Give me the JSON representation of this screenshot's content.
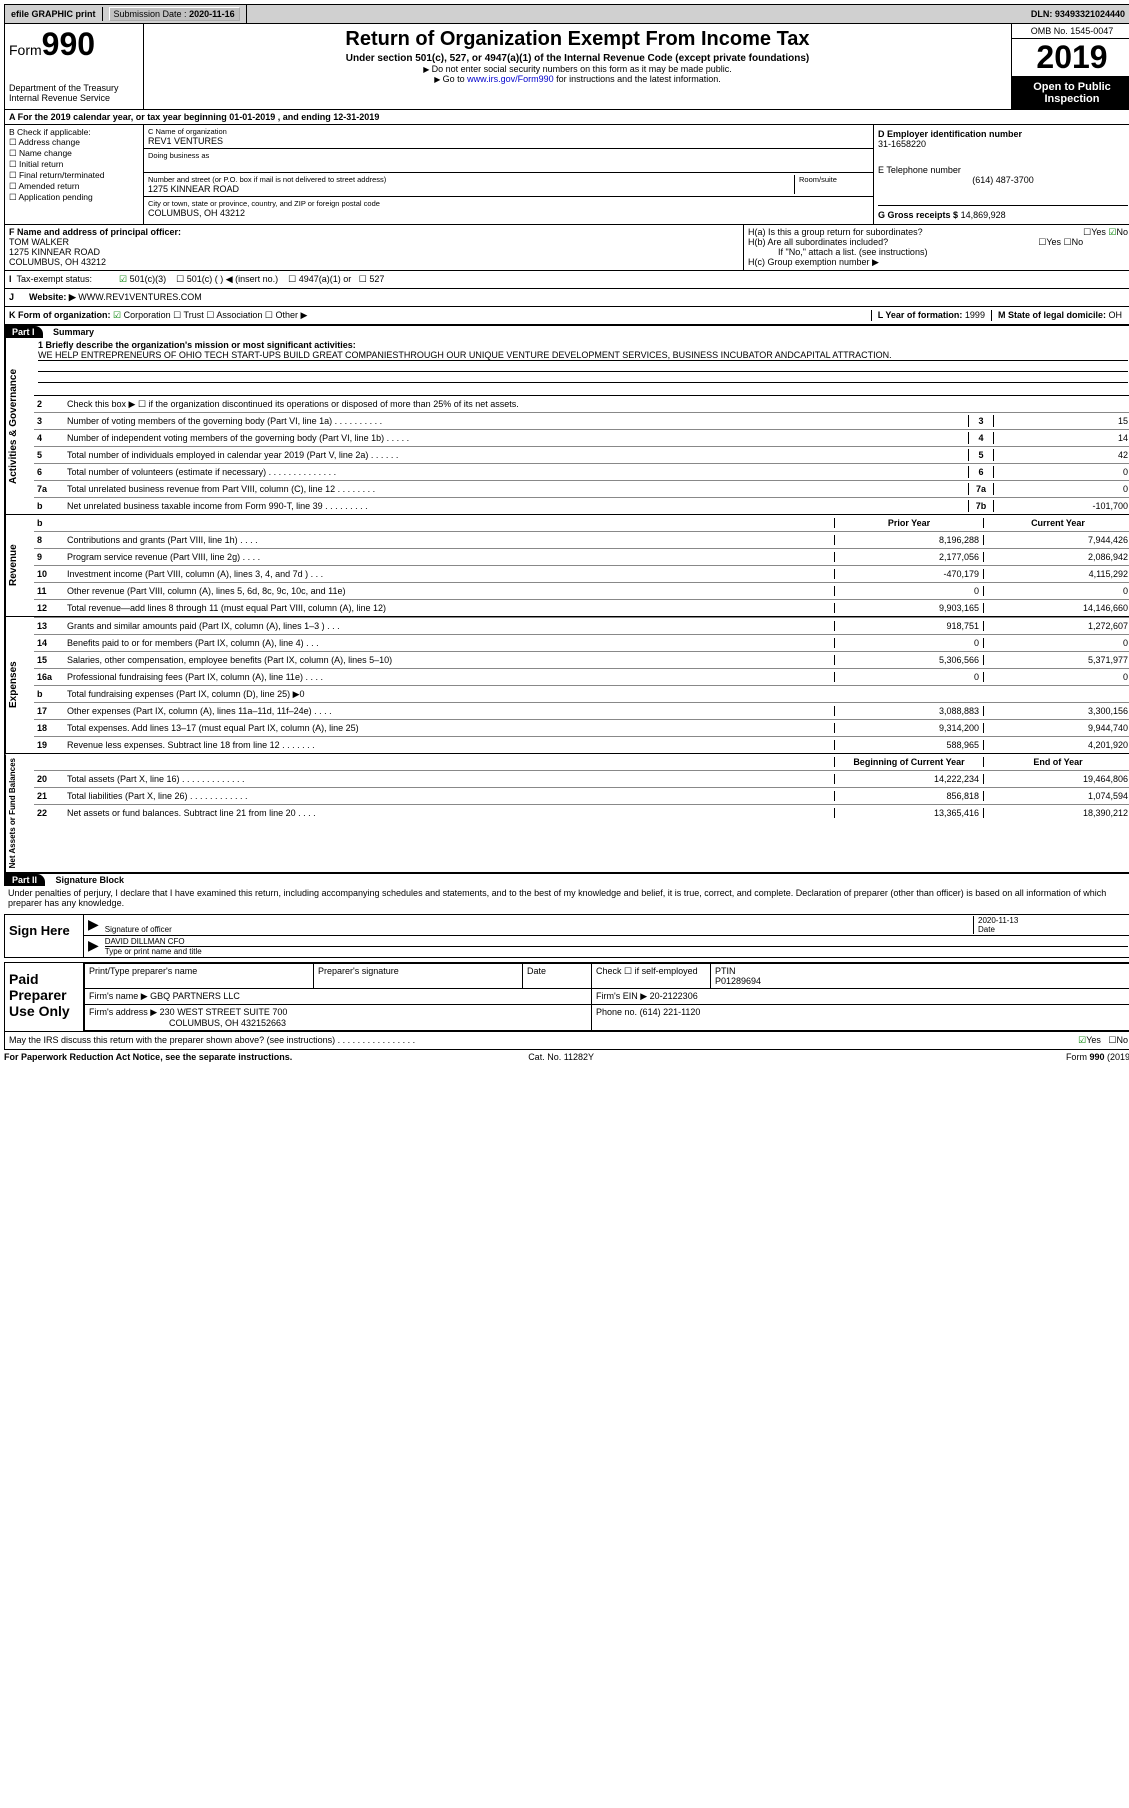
{
  "topbar": {
    "efile": "efile GRAPHIC print",
    "submission_label": "Submission Date :",
    "submission_date": "2020-11-16",
    "dln_label": "DLN:",
    "dln": "93493321024440"
  },
  "header": {
    "form_prefix": "Form",
    "form_number": "990",
    "dept": "Department of the Treasury",
    "irs": "Internal Revenue Service",
    "title": "Return of Organization Exempt From Income Tax",
    "sub1": "Under section 501(c), 527, or 4947(a)(1) of the Internal Revenue Code (except private foundations)",
    "sub2": "Do not enter social security numbers on this form as it may be made public.",
    "sub3_pre": "Go to ",
    "sub3_link": "www.irs.gov/Form990",
    "sub3_post": " for instructions and the latest information.",
    "omb": "OMB No. 1545-0047",
    "year": "2019",
    "open": "Open to Public Inspection"
  },
  "line_a": "A For the 2019 calendar year, or tax year beginning 01-01-2019    , and ending 12-31-2019",
  "section_b": {
    "title": "B Check if applicable:",
    "items": [
      "Address change",
      "Name change",
      "Initial return",
      "Final return/terminated",
      "Amended return",
      "Application pending"
    ]
  },
  "section_c": {
    "name_label": "C Name of organization",
    "name": "REV1 VENTURES",
    "dba_label": "Doing business as",
    "addr_label": "Number and street (or P.O. box if mail is not delivered to street address)",
    "room_label": "Room/suite",
    "addr": "1275 KINNEAR ROAD",
    "city_label": "City or town, state or province, country, and ZIP or foreign postal code",
    "city": "COLUMBUS, OH  43212"
  },
  "section_d": {
    "ein_label": "D Employer identification number",
    "ein": "31-1658220",
    "tel_label": "E Telephone number",
    "tel": "(614) 487-3700",
    "gross_label": "G Gross receipts $",
    "gross": "14,869,928"
  },
  "section_f": {
    "label": "F  Name and address of principal officer:",
    "name": "TOM WALKER",
    "addr1": "1275 KINNEAR ROAD",
    "addr2": "COLUMBUS, OH  43212"
  },
  "section_h": {
    "ha": "H(a)  Is this a group return for subordinates?",
    "hb": "H(b)  Are all subordinates included?",
    "hb_note": "If \"No,\" attach a list. (see instructions)",
    "hc": "H(c)  Group exemption number ▶",
    "yes": "Yes",
    "no": "No"
  },
  "tax_status": {
    "label": "Tax-exempt status:",
    "opts": [
      "501(c)(3)",
      "501(c) (  ) ◀ (insert no.)",
      "4947(a)(1) or",
      "527"
    ]
  },
  "website": {
    "label": "J",
    "text": "Website: ▶",
    "url": "WWW.REV1VENTURES.COM"
  },
  "line_k": {
    "label": "K Form of organization:",
    "opts": [
      "Corporation",
      "Trust",
      "Association",
      "Other ▶"
    ],
    "l_label": "L Year of formation:",
    "l_val": "1999",
    "m_label": "M State of legal domicile:",
    "m_val": "OH"
  },
  "part1": {
    "label": "Part I",
    "title": "Summary",
    "q1_label": "1  Briefly describe the organization's mission or most significant activities:",
    "mission": "WE HELP ENTREPRENEURS OF OHIO TECH START-UPS BUILD GREAT COMPANIESTHROUGH OUR UNIQUE VENTURE DEVELOPMENT SERVICES, BUSINESS INCUBATOR ANDCAPITAL ATTRACTION.",
    "q2": "Check this box ▶ ☐  if the organization discontinued its operations or disposed of more than 25% of its net assets.",
    "lines_gov": [
      {
        "n": "3",
        "d": "Number of voting members of the governing body (Part VI, line 1a)  .  .  .  .  .  .  .  .  .  .",
        "b": "3",
        "v": "15"
      },
      {
        "n": "4",
        "d": "Number of independent voting members of the governing body (Part VI, line 1b)  .  .  .  .  .",
        "b": "4",
        "v": "14"
      },
      {
        "n": "5",
        "d": "Total number of individuals employed in calendar year 2019 (Part V, line 2a)  .  .  .  .  .  .",
        "b": "5",
        "v": "42"
      },
      {
        "n": "6",
        "d": "Total number of volunteers (estimate if necessary)   .  .  .  .  .  .  .  .  .  .  .  .  .  .",
        "b": "6",
        "v": "0"
      },
      {
        "n": "7a",
        "d": "Total unrelated business revenue from Part VIII, column (C), line 12  .  .  .  .  .  .  .  .",
        "b": "7a",
        "v": "0"
      },
      {
        "n": "b",
        "d": "Net unrelated business taxable income from Form 990-T, line 39   .  .  .  .  .  .  .  .  .",
        "b": "7b",
        "v": "-101,700"
      }
    ],
    "col_hdr_prior": "Prior Year",
    "col_hdr_curr": "Current Year",
    "lines_rev": [
      {
        "n": "8",
        "d": "Contributions and grants (Part VIII, line 1h)   .  .  .  .",
        "p": "8,196,288",
        "c": "7,944,426"
      },
      {
        "n": "9",
        "d": "Program service revenue (Part VIII, line 2g)   .  .  .  .",
        "p": "2,177,056",
        "c": "2,086,942"
      },
      {
        "n": "10",
        "d": "Investment income (Part VIII, column (A), lines 3, 4, and 7d )   .  .  .",
        "p": "-470,179",
        "c": "4,115,292"
      },
      {
        "n": "11",
        "d": "Other revenue (Part VIII, column (A), lines 5, 6d, 8c, 9c, 10c, and 11e)",
        "p": "0",
        "c": "0"
      },
      {
        "n": "12",
        "d": "Total revenue—add lines 8 through 11 (must equal Part VIII, column (A), line 12)",
        "p": "9,903,165",
        "c": "14,146,660"
      }
    ],
    "lines_exp": [
      {
        "n": "13",
        "d": "Grants and similar amounts paid (Part IX, column (A), lines 1–3 )  .  .  .",
        "p": "918,751",
        "c": "1,272,607"
      },
      {
        "n": "14",
        "d": "Benefits paid to or for members (Part IX, column (A), line 4)  .  .  .",
        "p": "0",
        "c": "0"
      },
      {
        "n": "15",
        "d": "Salaries, other compensation, employee benefits (Part IX, column (A), lines 5–10)",
        "p": "5,306,566",
        "c": "5,371,977"
      },
      {
        "n": "16a",
        "d": "Professional fundraising fees (Part IX, column (A), line 11e)  .  .  .  .",
        "p": "0",
        "c": "0"
      },
      {
        "n": "b",
        "d": "Total fundraising expenses (Part IX, column (D), line 25) ▶0",
        "p": "",
        "c": "",
        "shade": true
      },
      {
        "n": "17",
        "d": "Other expenses (Part IX, column (A), lines 11a–11d, 11f–24e)  .  .  .  .",
        "p": "3,088,883",
        "c": "3,300,156"
      },
      {
        "n": "18",
        "d": "Total expenses. Add lines 13–17 (must equal Part IX, column (A), line 25)",
        "p": "9,314,200",
        "c": "9,944,740"
      },
      {
        "n": "19",
        "d": "Revenue less expenses. Subtract line 18 from line 12  .  .  .  .  .  .  .",
        "p": "588,965",
        "c": "4,201,920"
      }
    ],
    "col_hdr_beg": "Beginning of Current Year",
    "col_hdr_end": "End of Year",
    "lines_net": [
      {
        "n": "20",
        "d": "Total assets (Part X, line 16)  .  .  .  .  .  .  .  .  .  .  .  .  .",
        "p": "14,222,234",
        "c": "19,464,806"
      },
      {
        "n": "21",
        "d": "Total liabilities (Part X, line 26)  .  .  .  .  .  .  .  .  .  .  .  .",
        "p": "856,818",
        "c": "1,074,594"
      },
      {
        "n": "22",
        "d": "Net assets or fund balances. Subtract line 21 from line 20  .  .  .  .",
        "p": "13,365,416",
        "c": "18,390,212"
      }
    ],
    "vtab_gov": "Activities & Governance",
    "vtab_rev": "Revenue",
    "vtab_exp": "Expenses",
    "vtab_net": "Net Assets or Fund Balances"
  },
  "part2": {
    "label": "Part II",
    "title": "Signature Block",
    "perjury": "Under penalties of perjury, I declare that I have examined this return, including accompanying schedules and statements, and to the best of my knowledge and belief, it is true, correct, and complete. Declaration of preparer (other than officer) is based on all information of which preparer has any knowledge.",
    "sign_here": "Sign Here",
    "sig_officer": "Signature of officer",
    "sig_date": "2020-11-13",
    "date_label": "Date",
    "officer_name": "DAVID DILLMAN CFO",
    "type_label": "Type or print name and title",
    "paid_prep": "Paid Preparer Use Only",
    "prep_name_label": "Print/Type preparer's name",
    "prep_sig_label": "Preparer's signature",
    "prep_date_label": "Date",
    "check_self": "Check ☐ if self-employed",
    "ptin_label": "PTIN",
    "ptin": "P01289694",
    "firm_name_label": "Firm's name    ▶",
    "firm_name": "GBQ PARTNERS LLC",
    "firm_ein_label": "Firm's EIN ▶",
    "firm_ein": "20-2122306",
    "firm_addr_label": "Firm's address ▶",
    "firm_addr1": "230 WEST STREET SUITE 700",
    "firm_addr2": "COLUMBUS, OH  432152663",
    "firm_phone_label": "Phone no.",
    "firm_phone": "(614) 221-1120",
    "discuss": "May the IRS discuss this return with the preparer shown above? (see instructions)   .  .  .  .  .  .  .  .  .  .  .  .  .  .  .  ."
  },
  "footer": {
    "paperwork": "For Paperwork Reduction Act Notice, see the separate instructions.",
    "cat": "Cat. No. 11282Y",
    "form": "Form 990 (2019)"
  }
}
